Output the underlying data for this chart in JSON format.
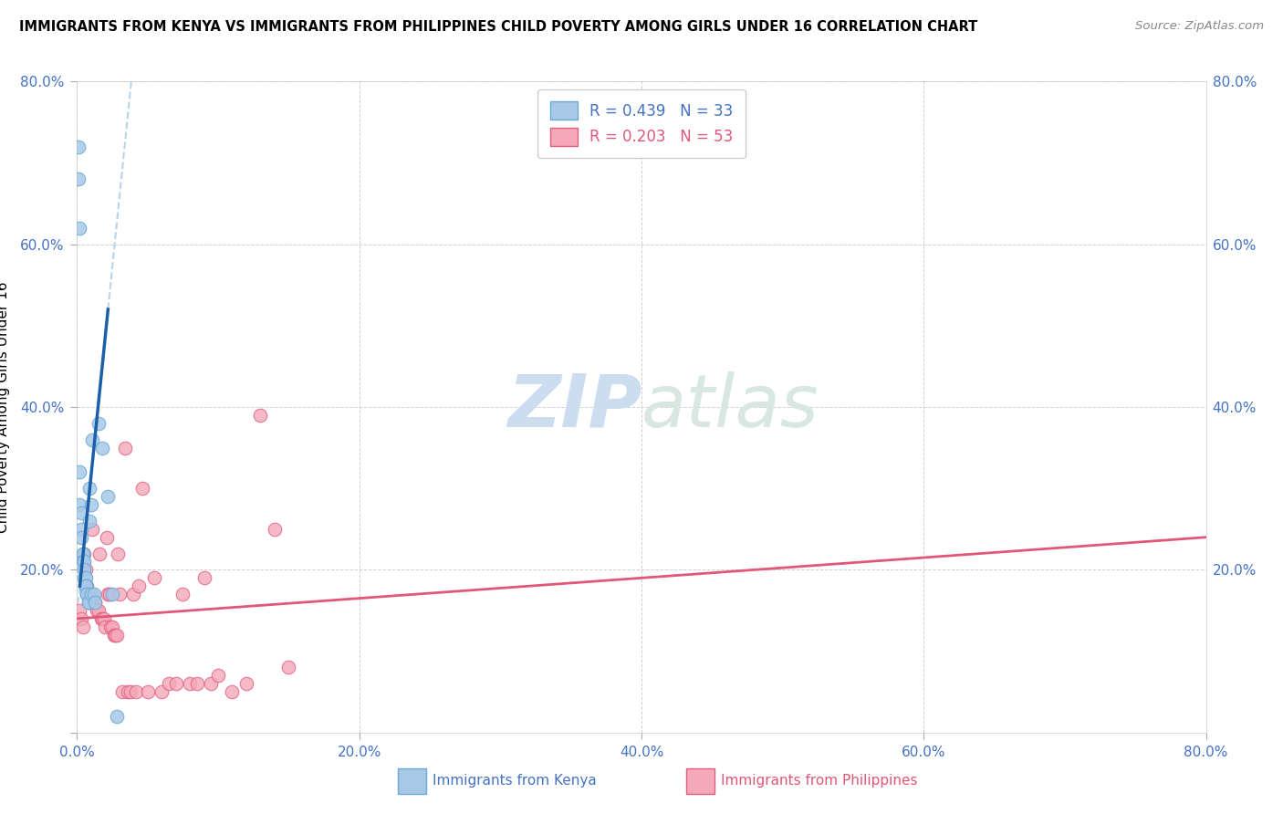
{
  "title": "IMMIGRANTS FROM KENYA VS IMMIGRANTS FROM PHILIPPINES CHILD POVERTY AMONG GIRLS UNDER 16 CORRELATION CHART",
  "source": "Source: ZipAtlas.com",
  "ylabel": "Child Poverty Among Girls Under 16",
  "xlim": [
    0.0,
    0.8
  ],
  "ylim": [
    0.0,
    0.8
  ],
  "xticks": [
    0.0,
    0.2,
    0.4,
    0.6,
    0.8
  ],
  "yticks": [
    0.0,
    0.2,
    0.4,
    0.6,
    0.8
  ],
  "xtick_labels": [
    "0.0%",
    "20.0%",
    "40.0%",
    "60.0%",
    "80.0%"
  ],
  "ytick_labels_left": [
    "",
    "20.0%",
    "40.0%",
    "60.0%",
    "80.0%"
  ],
  "ytick_labels_right": [
    "",
    "20.0%",
    "40.0%",
    "60.0%",
    "80.0%"
  ],
  "kenya_color": "#a8c8e8",
  "kenya_edge_color": "#6aaad4",
  "philippines_color": "#f4a8b8",
  "philippines_edge_color": "#e06080",
  "kenya_R": 0.439,
  "kenya_N": 33,
  "philippines_R": 0.203,
  "philippines_N": 53,
  "kenya_line_color": "#1a5fa8",
  "philippines_line_color": "#e05878",
  "kenya_trend_dashed_color": "#b8d4ec",
  "watermark_zip": "ZIP",
  "watermark_atlas": "atlas",
  "kenya_x": [
    0.001,
    0.001,
    0.002,
    0.002,
    0.002,
    0.003,
    0.003,
    0.003,
    0.004,
    0.004,
    0.004,
    0.005,
    0.005,
    0.005,
    0.006,
    0.006,
    0.006,
    0.007,
    0.007,
    0.008,
    0.008,
    0.009,
    0.009,
    0.01,
    0.01,
    0.011,
    0.012,
    0.013,
    0.015,
    0.018,
    0.022,
    0.025,
    0.028
  ],
  "kenya_y": [
    0.72,
    0.68,
    0.62,
    0.32,
    0.28,
    0.27,
    0.25,
    0.24,
    0.22,
    0.22,
    0.21,
    0.21,
    0.2,
    0.19,
    0.19,
    0.18,
    0.18,
    0.17,
    0.17,
    0.16,
    0.16,
    0.3,
    0.26,
    0.17,
    0.28,
    0.36,
    0.17,
    0.16,
    0.38,
    0.35,
    0.29,
    0.17,
    0.02
  ],
  "philippines_x": [
    0.002,
    0.003,
    0.004,
    0.005,
    0.006,
    0.007,
    0.008,
    0.009,
    0.01,
    0.011,
    0.012,
    0.013,
    0.014,
    0.015,
    0.016,
    0.017,
    0.018,
    0.019,
    0.02,
    0.021,
    0.022,
    0.023,
    0.024,
    0.025,
    0.026,
    0.027,
    0.028,
    0.029,
    0.03,
    0.032,
    0.034,
    0.036,
    0.038,
    0.04,
    0.042,
    0.044,
    0.046,
    0.05,
    0.055,
    0.06,
    0.065,
    0.07,
    0.075,
    0.08,
    0.085,
    0.09,
    0.095,
    0.1,
    0.11,
    0.12,
    0.13,
    0.14,
    0.15
  ],
  "philippines_y": [
    0.15,
    0.14,
    0.13,
    0.22,
    0.2,
    0.18,
    0.17,
    0.16,
    0.16,
    0.25,
    0.16,
    0.16,
    0.15,
    0.15,
    0.22,
    0.14,
    0.14,
    0.14,
    0.13,
    0.24,
    0.17,
    0.17,
    0.13,
    0.13,
    0.12,
    0.12,
    0.12,
    0.22,
    0.17,
    0.05,
    0.35,
    0.05,
    0.05,
    0.17,
    0.05,
    0.18,
    0.3,
    0.05,
    0.19,
    0.05,
    0.06,
    0.06,
    0.17,
    0.06,
    0.06,
    0.19,
    0.06,
    0.07,
    0.05,
    0.06,
    0.39,
    0.25,
    0.08
  ]
}
